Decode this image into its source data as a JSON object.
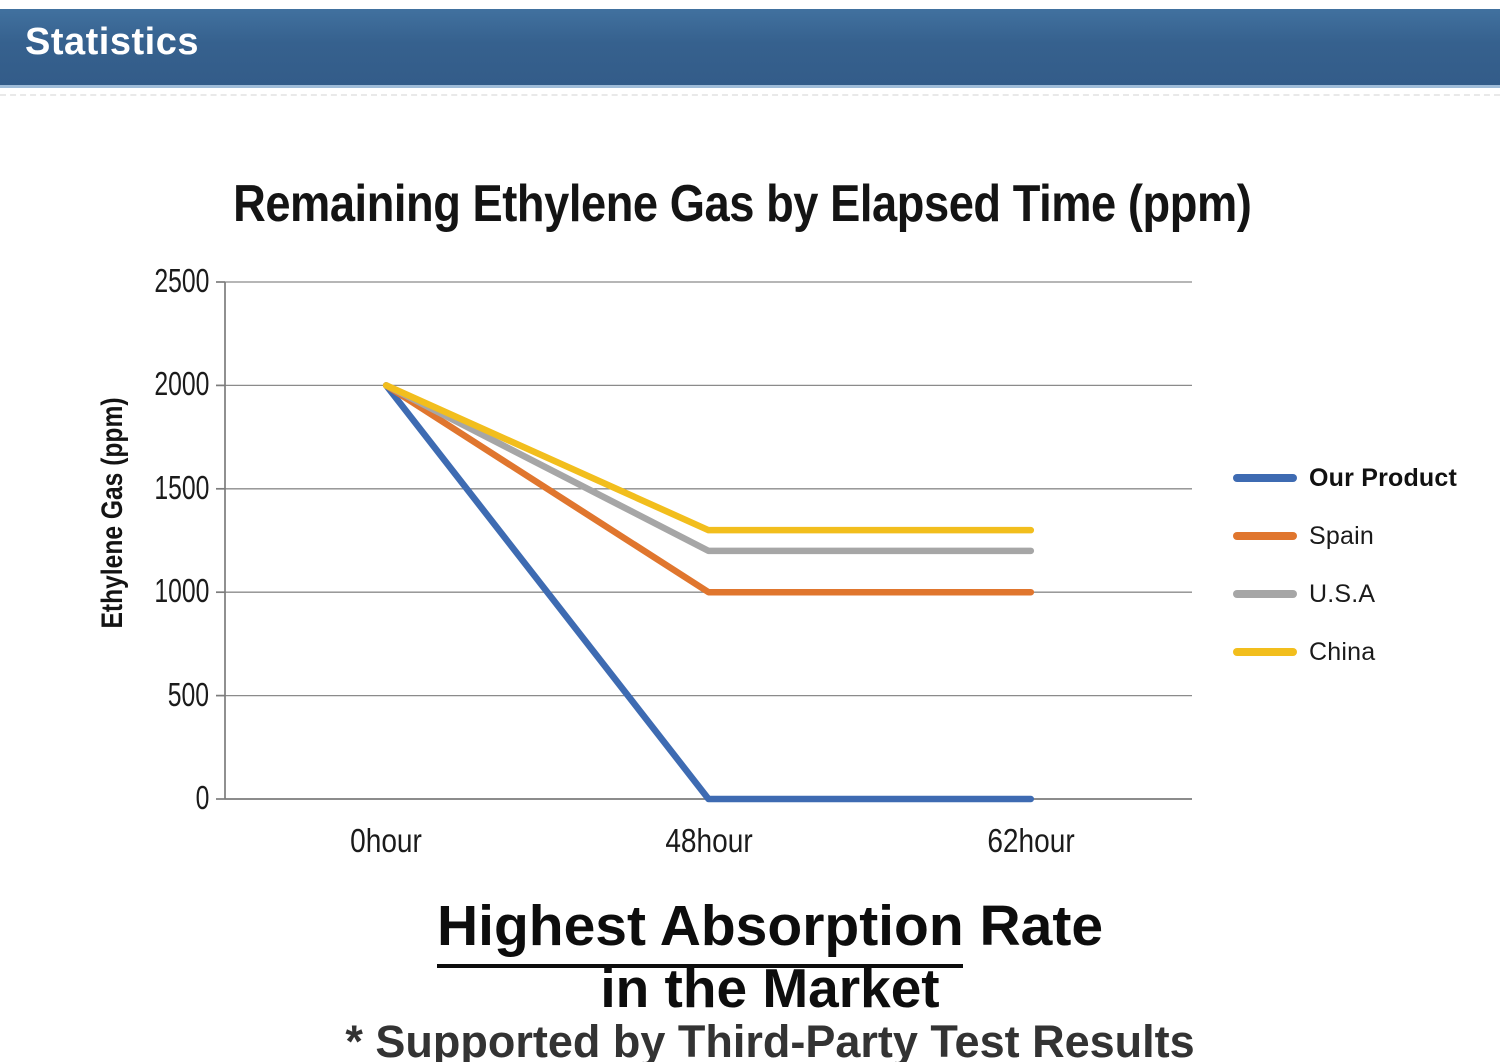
{
  "header": {
    "title": "Statistics"
  },
  "chart_data": {
    "type": "line",
    "title": "Remaining Ethylene Gas by Elapsed Time (ppm)",
    "ylabel": "Ethylene Gas (ppm)",
    "xlabel": "",
    "categories": [
      "0hour",
      "48hour",
      "62hour"
    ],
    "series": [
      {
        "name": "Our Product",
        "values": [
          2000,
          0,
          0
        ],
        "color": "#3E6BB2",
        "emphasis": true
      },
      {
        "name": "Spain",
        "values": [
          2000,
          1000,
          1000
        ],
        "color": "#E0762E"
      },
      {
        "name": "U.S.A",
        "values": [
          2000,
          1200,
          1200
        ],
        "color": "#A6A6A6"
      },
      {
        "name": "China",
        "values": [
          2000,
          1300,
          1300
        ],
        "color": "#F2BE1D"
      }
    ],
    "ylim": [
      0,
      2500
    ],
    "yticks": [
      0,
      500,
      1000,
      1500,
      2000,
      2500
    ],
    "grid": true,
    "legend_position": "right"
  },
  "footer": {
    "headline": "Highest Absorption Rate",
    "subheadline": "in the Market",
    "note": "* Supported by Third-Party Test Results"
  },
  "style": {
    "banner_color": "#36618E",
    "gridline_color": "#8B8B8B",
    "axis_color": "#7C7C7C"
  }
}
